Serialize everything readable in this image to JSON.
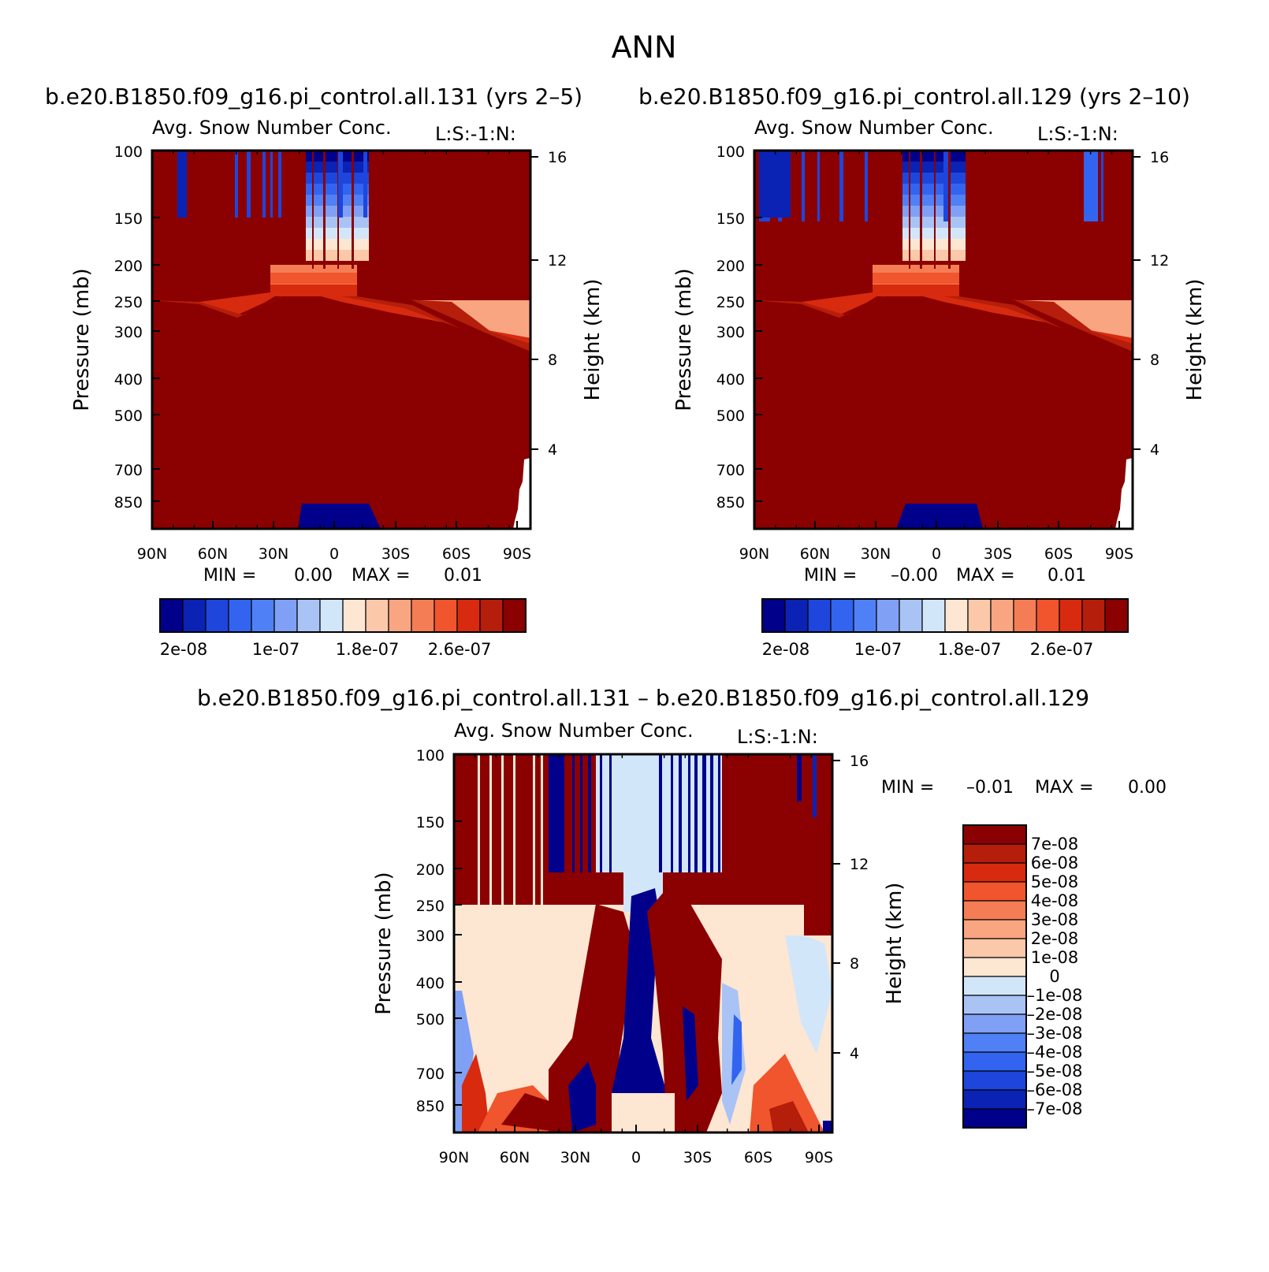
{
  "figure_title": "ANN",
  "diff_title": "b.e20.B1850.f09_g16.pi_control.all.131 – b.e20.B1850.f09_g16.pi_control.all.129",
  "colors": {
    "abs_levels": [
      "#00008b",
      "#0a23b4",
      "#1e46dc",
      "#3264f0",
      "#5080f5",
      "#7fa0f5",
      "#a9c3f5",
      "#d2e6fa",
      "#fde6d2",
      "#fcc8aa",
      "#faa582",
      "#f57d55",
      "#f0552d",
      "#d72a0f",
      "#b41e0a",
      "#8b0000"
    ],
    "diff_levels": [
      "#00008b",
      "#0a23b4",
      "#1e46dc",
      "#3264f0",
      "#5080f5",
      "#7fa0f5",
      "#a9c3f5",
      "#d2e6fa",
      "#fde6d2",
      "#fcc8aa",
      "#faa582",
      "#f57d55",
      "#f0552d",
      "#d72a0f",
      "#b41e0a",
      "#8b0000"
    ]
  },
  "chart_data": [
    {
      "type": "heatmap",
      "title": "b.e20.B1850.f09_g16.pi_control.all.131 (yrs 2–5)",
      "subtitle": "Avg. Snow Number Conc.",
      "level_tag": "L:S:-1:N:",
      "xlabel": "",
      "ylabel": "Pressure (mb)",
      "ylabel_right": "Height (km)",
      "x_ticks": [
        "90N",
        "60N",
        "30N",
        "0",
        "30S",
        "60S",
        "90S"
      ],
      "y_ticks": [
        "100",
        "150",
        "200",
        "250",
        "300",
        "400",
        "500",
        "700",
        "850"
      ],
      "y_ticks_right": [
        "16",
        "12",
        "8",
        "4"
      ],
      "min_label": "MIN =",
      "min_value": "0.00",
      "max_label": "MAX =",
      "max_value": "0.01",
      "colorbar_labels": [
        "2e-08",
        "1e-07",
        "1.8e-07",
        "2.6e-07"
      ]
    },
    {
      "type": "heatmap",
      "title": "b.e20.B1850.f09_g16.pi_control.all.129 (yrs 2–10)",
      "subtitle": "Avg. Snow Number Conc.",
      "level_tag": "L:S:-1:N:",
      "xlabel": "",
      "ylabel": "Pressure (mb)",
      "ylabel_right": "Height (km)",
      "x_ticks": [
        "90N",
        "60N",
        "30N",
        "0",
        "30S",
        "60S",
        "90S"
      ],
      "y_ticks": [
        "100",
        "150",
        "200",
        "250",
        "300",
        "400",
        "500",
        "700",
        "850"
      ],
      "y_ticks_right": [
        "16",
        "12",
        "8",
        "4"
      ],
      "min_label": "MIN =",
      "min_value": "–0.00",
      "max_label": "MAX =",
      "max_value": "0.01",
      "colorbar_labels": [
        "2e-08",
        "1e-07",
        "1.8e-07",
        "2.6e-07"
      ]
    },
    {
      "type": "heatmap",
      "subtitle": "Avg. Snow Number Conc.",
      "level_tag": "L:S:-1:N:",
      "xlabel": "",
      "ylabel": "Pressure (mb)",
      "ylabel_right": "Height (km)",
      "x_ticks": [
        "90N",
        "60N",
        "30N",
        "0",
        "30S",
        "60S",
        "90S"
      ],
      "y_ticks": [
        "100",
        "150",
        "200",
        "250",
        "300",
        "400",
        "500",
        "700",
        "850"
      ],
      "y_ticks_right": [
        "16",
        "12",
        "8",
        "4"
      ],
      "min_label": "MIN =",
      "min_value": "–0.01",
      "max_label": "MAX =",
      "max_value": "0.00",
      "colorbar_labels": [
        "7e-08",
        "6e-08",
        "5e-08",
        "4e-08",
        "3e-08",
        "2e-08",
        "1e-08",
        "0",
        "–1e-08",
        "–2e-08",
        "–3e-08",
        "–4e-08",
        "–5e-08",
        "–6e-08",
        "–7e-08"
      ]
    }
  ]
}
